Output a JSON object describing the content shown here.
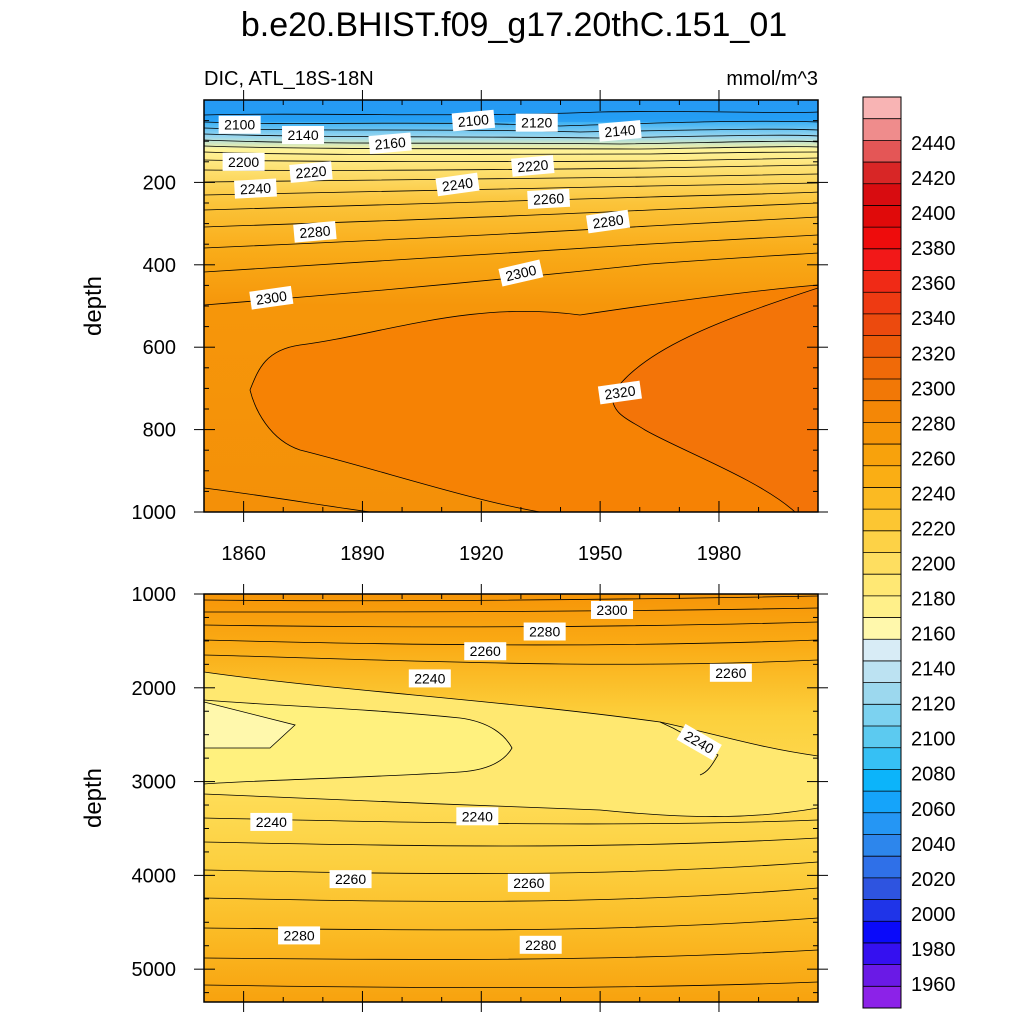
{
  "title": "b.e20.BHIST.f09_g17.20thC.151_01",
  "left_subtitle": "DIC, ATL_18S-18N",
  "right_subtitle": "mmol/m^3",
  "chart_data": [
    {
      "type": "heatmap",
      "panel": "upper",
      "xlabel": "",
      "ylabel": "depth",
      "xlim": [
        1850,
        2005
      ],
      "ylim": [
        1000,
        0
      ],
      "xticks": [
        1860,
        1890,
        1920,
        1950,
        1980
      ],
      "yticks": [
        200,
        400,
        600,
        800,
        1000
      ],
      "contour_labels": [
        {
          "text": "2100",
          "x": 1859,
          "depth": 60,
          "angle": 0
        },
        {
          "text": "2140",
          "x": 1875,
          "depth": 85,
          "angle": 0
        },
        {
          "text": "2160",
          "x": 1897,
          "depth": 105,
          "angle": -5
        },
        {
          "text": "2100",
          "x": 1918,
          "depth": 50,
          "angle": -5
        },
        {
          "text": "2120",
          "x": 1934,
          "depth": 55,
          "angle": 0
        },
        {
          "text": "2140",
          "x": 1955,
          "depth": 75,
          "angle": -5
        },
        {
          "text": "2200",
          "x": 1860,
          "depth": 150,
          "angle": 0
        },
        {
          "text": "2220",
          "x": 1877,
          "depth": 175,
          "angle": -5
        },
        {
          "text": "2220",
          "x": 1933,
          "depth": 160,
          "angle": -5
        },
        {
          "text": "2240",
          "x": 1863,
          "depth": 215,
          "angle": -3
        },
        {
          "text": "2240",
          "x": 1914,
          "depth": 205,
          "angle": -8
        },
        {
          "text": "2260",
          "x": 1937,
          "depth": 240,
          "angle": -3
        },
        {
          "text": "2280",
          "x": 1878,
          "depth": 320,
          "angle": -5
        },
        {
          "text": "2280",
          "x": 1952,
          "depth": 295,
          "angle": -8
        },
        {
          "text": "2300",
          "x": 1867,
          "depth": 480,
          "angle": -8
        },
        {
          "text": "2300",
          "x": 1930,
          "depth": 420,
          "angle": -13
        },
        {
          "text": "2320",
          "x": 1955,
          "depth": 710,
          "angle": -8
        }
      ]
    },
    {
      "type": "heatmap",
      "panel": "lower",
      "xlabel": "",
      "ylabel": "depth",
      "xlim": [
        1850,
        2005
      ],
      "ylim": [
        5350,
        1000
      ],
      "yticks": [
        1000,
        2000,
        3000,
        4000,
        5000
      ],
      "contour_labels": [
        {
          "text": "2300",
          "x": 1953,
          "depth": 1170,
          "angle": 0
        },
        {
          "text": "2280",
          "x": 1936,
          "depth": 1400,
          "angle": 0
        },
        {
          "text": "2260",
          "x": 1921,
          "depth": 1610,
          "angle": 0
        },
        {
          "text": "2240",
          "x": 1907,
          "depth": 1900,
          "angle": 0
        },
        {
          "text": "2260",
          "x": 1983,
          "depth": 1840,
          "angle": 0
        },
        {
          "text": "2240",
          "x": 1975,
          "depth": 2580,
          "angle": 30
        },
        {
          "text": "2240",
          "x": 1867,
          "depth": 3430,
          "angle": 0
        },
        {
          "text": "2240",
          "x": 1919,
          "depth": 3370,
          "angle": 0
        },
        {
          "text": "2260",
          "x": 1887,
          "depth": 4040,
          "angle": 0
        },
        {
          "text": "2260",
          "x": 1932,
          "depth": 4080,
          "angle": 0
        },
        {
          "text": "2280",
          "x": 1874,
          "depth": 4640,
          "angle": 0
        },
        {
          "text": "2280",
          "x": 1935,
          "depth": 4740,
          "angle": 0
        }
      ]
    }
  ],
  "colorbar": {
    "levels": [
      1940,
      1960,
      1980,
      2000,
      2020,
      2040,
      2060,
      2080,
      2100,
      2120,
      2140,
      2160,
      2180,
      2200,
      2220,
      2240,
      2260,
      2280,
      2300,
      2320,
      2340,
      2360,
      2380,
      2400,
      2420,
      2440,
      2460
    ],
    "labels": [
      "1960",
      "1980",
      "2000",
      "2020",
      "2040",
      "2060",
      "2080",
      "2100",
      "2120",
      "2140",
      "2160",
      "2180",
      "2200",
      "2220",
      "2240",
      "2260",
      "2280",
      "2300",
      "2320",
      "2340",
      "2360",
      "2380",
      "2400",
      "2420",
      "2440"
    ],
    "colors": [
      "#8c22e8",
      "#6a1ae6",
      "#3510f0",
      "#0a0afa",
      "#1f34e8",
      "#2e54e0",
      "#2f70e8",
      "#2d86ec",
      "#2596f4",
      "#15a4fa",
      "#0cb4fa",
      "#36c0f4",
      "#5ccaf0",
      "#7cd2f0",
      "#9cd8ee",
      "#bce2f2",
      "#d8ecf6",
      "#fff8ac",
      "#fff08a",
      "#ffe874",
      "#fede60",
      "#fdd246",
      "#fcc632",
      "#fbba22",
      "#faae14",
      "#f8a20c",
      "#f69508",
      "#f48706",
      "#f27806",
      "#f06a08",
      "#ed5a0a",
      "#ec4a0e",
      "#ee3a12",
      "#f02a16",
      "#f21818",
      "#ee0c0c",
      "#e00a0a",
      "#d80c10",
      "#d82626",
      "#e45656",
      "#ef8c8c",
      "#f8b4b4"
    ]
  }
}
